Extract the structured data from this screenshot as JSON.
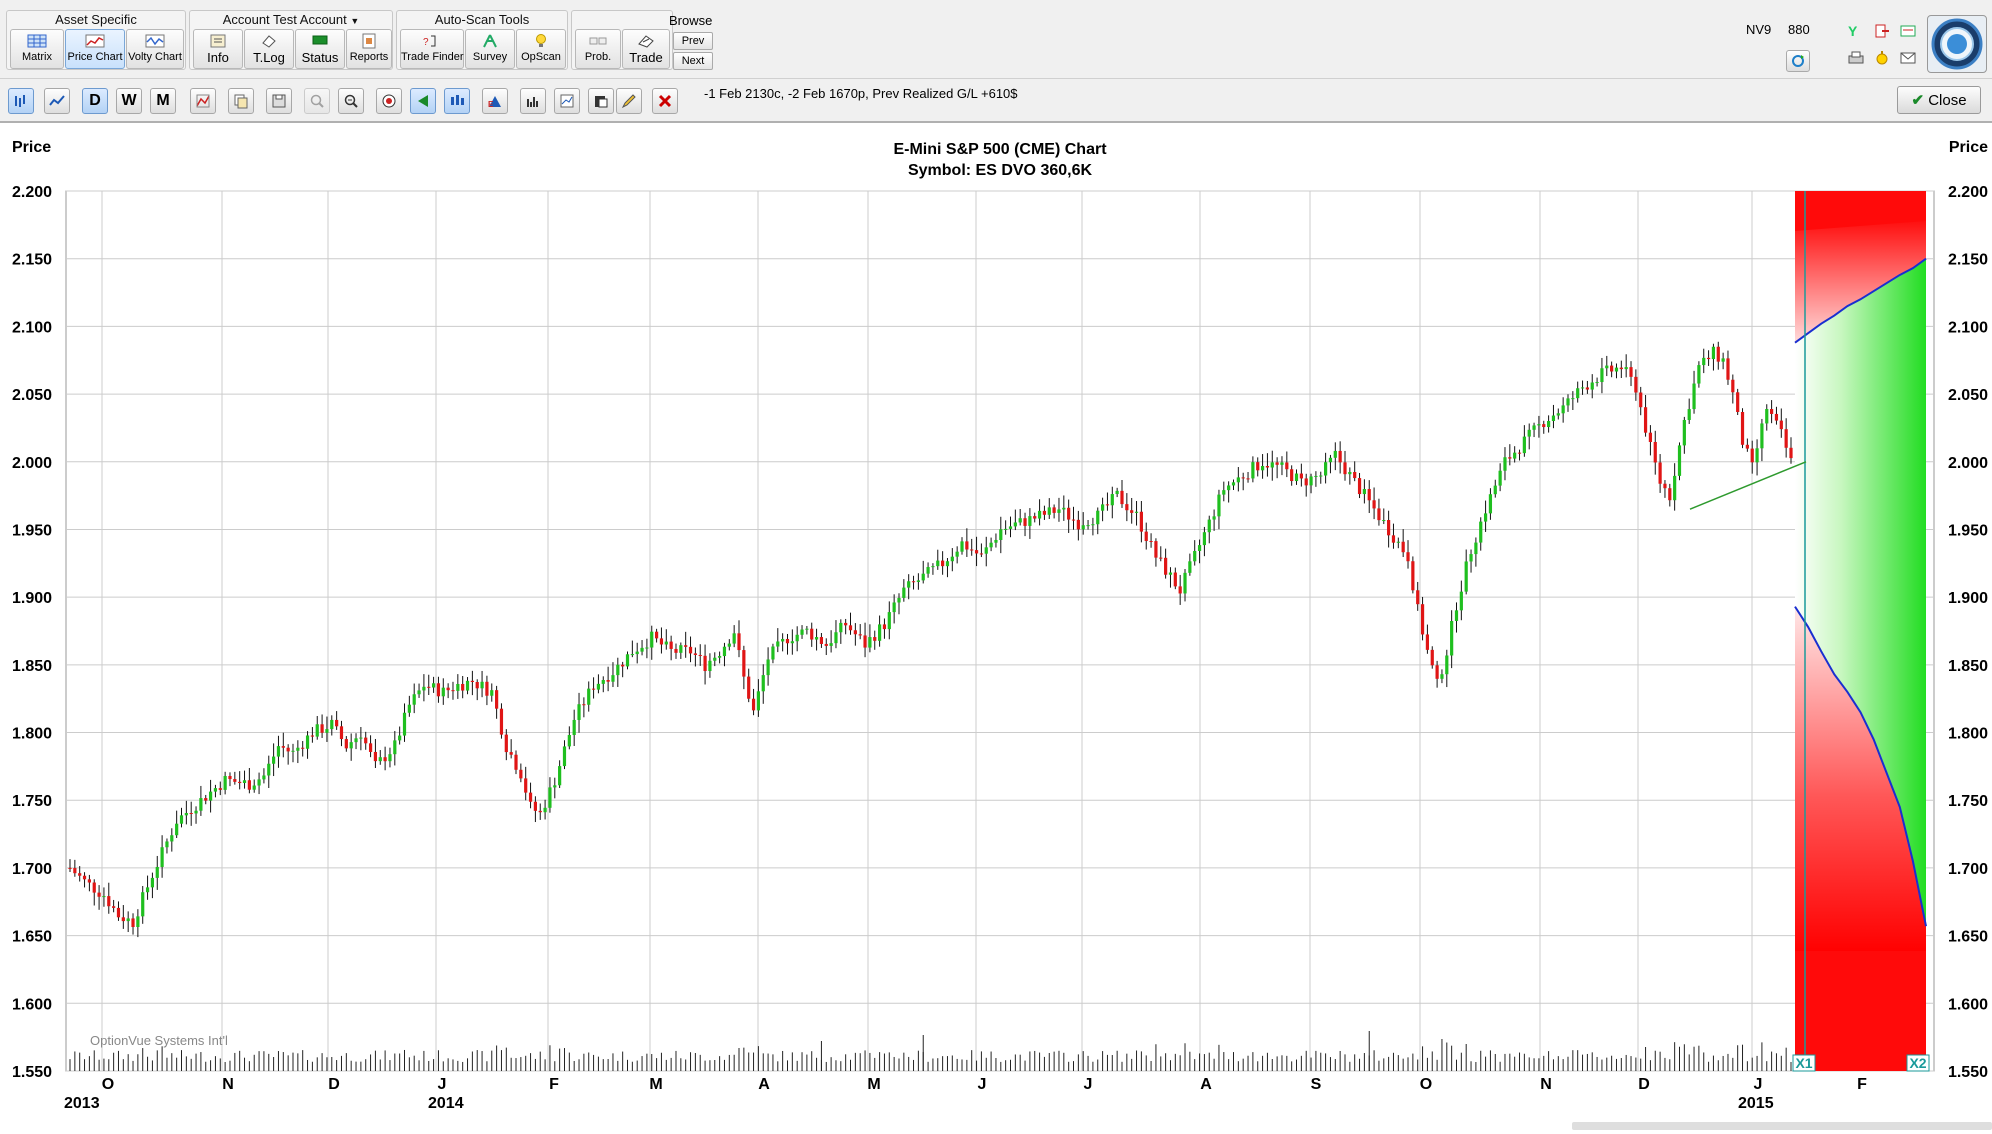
{
  "ribbon": {
    "groups": [
      {
        "title": "Asset Specific",
        "buttons": [
          {
            "label": "Matrix",
            "icon": "matrix-icon"
          },
          {
            "label": "Price Chart",
            "icon": "price-chart-icon",
            "active": true
          },
          {
            "label": "Volty Chart",
            "icon": "volatility-chart-icon"
          }
        ]
      },
      {
        "title": "Account Test Account",
        "buttons": [
          {
            "label": "Info",
            "icon": "info-icon"
          },
          {
            "label": "T.Log",
            "icon": "trade-log-icon"
          },
          {
            "label": "Status",
            "icon": "status-icon"
          },
          {
            "label": "Reports",
            "icon": "reports-icon"
          }
        ]
      },
      {
        "title": "Auto-Scan Tools",
        "buttons": [
          {
            "label": "Trade Finder",
            "icon": "trade-finder-icon"
          },
          {
            "label": "Survey",
            "icon": "survey-icon"
          },
          {
            "label": "OpScan",
            "icon": "lightbulb-icon"
          }
        ]
      },
      {
        "title": "",
        "buttons": [
          {
            "label": "Prob.",
            "icon": "probability-icon"
          },
          {
            "label": "Trade",
            "icon": "trade-icon"
          }
        ]
      }
    ],
    "browse": {
      "title": "Browse",
      "prev": "Prev",
      "next": "Next"
    },
    "status": {
      "left": "NV9",
      "right": "880"
    }
  },
  "toolbar": {
    "period_buttons": [
      "D",
      "W",
      "M"
    ],
    "position_text": "-1 Feb 2130c, -2 Feb 1670p, Prev Realized G/L +610$",
    "close_label": "Close"
  },
  "chart": {
    "title": "E-Mini S&P 500 (CME) Chart",
    "subtitle": "Symbol: ES  DVO 360,6K",
    "y_label_left": "Price",
    "y_label_right": "Price",
    "watermark": "OptionVue Systems Int'l",
    "markers": [
      "X1",
      "X2"
    ],
    "colors": {
      "up": "#1fbf1f",
      "down": "#e01515",
      "trend": "#2e9a2e",
      "band_line": "#1a2fd0",
      "grid": "#cccccc"
    }
  },
  "chart_data": {
    "type": "candlestick",
    "title": "E-Mini S&P 500 (CME) Chart",
    "subtitle": "Symbol: ES  DVO 360,6K",
    "ylabel": "Price",
    "ylim": [
      1550,
      2200
    ],
    "y_ticks": [
      "2.200",
      "2.150",
      "2.100",
      "2.050",
      "2.000",
      "1.950",
      "1.900",
      "1.850",
      "1.800",
      "1.750",
      "1.700",
      "1.650",
      "1.600",
      "1.550"
    ],
    "x_month_labels": [
      "O",
      "N",
      "D",
      "J",
      "F",
      "M",
      "A",
      "M",
      "J",
      "J",
      "A",
      "S",
      "O",
      "N",
      "D",
      "J",
      "F"
    ],
    "x_year_labels": [
      "2013",
      "2014",
      "2015"
    ],
    "close_path_months": [
      "2013-10",
      "2013-11",
      "2013-12",
      "2014-01",
      "2014-02",
      "2014-03",
      "2014-04",
      "2014-05",
      "2014-06",
      "2014-07",
      "2014-08",
      "2014-09",
      "2014-10",
      "2014-11",
      "2014-12",
      "2015-01"
    ],
    "close_path": [
      [
        0,
        1700
      ],
      [
        3,
        1690
      ],
      [
        7,
        1680
      ],
      [
        10,
        1665
      ],
      [
        13,
        1660
      ],
      [
        17,
        1695
      ],
      [
        22,
        1735
      ],
      [
        27,
        1750
      ],
      [
        32,
        1765
      ],
      [
        37,
        1762
      ],
      [
        40,
        1768
      ],
      [
        43,
        1790
      ],
      [
        46,
        1785
      ],
      [
        50,
        1800
      ],
      [
        54,
        1806
      ],
      [
        57,
        1790
      ],
      [
        60,
        1800
      ],
      [
        63,
        1775
      ],
      [
        67,
        1790
      ],
      [
        70,
        1820
      ],
      [
        73,
        1835
      ],
      [
        77,
        1830
      ],
      [
        80,
        1835
      ],
      [
        83,
        1838
      ],
      [
        87,
        1830
      ],
      [
        90,
        1790
      ],
      [
        93,
        1770
      ],
      [
        95,
        1745
      ],
      [
        97,
        1740
      ],
      [
        100,
        1765
      ],
      [
        104,
        1810
      ],
      [
        108,
        1835
      ],
      [
        112,
        1845
      ],
      [
        116,
        1860
      ],
      [
        120,
        1870
      ],
      [
        124,
        1860
      ],
      [
        128,
        1860
      ],
      [
        131,
        1850
      ],
      [
        134,
        1860
      ],
      [
        137,
        1875
      ],
      [
        139,
        1840
      ],
      [
        141,
        1815
      ],
      [
        144,
        1855
      ],
      [
        148,
        1870
      ],
      [
        152,
        1875
      ],
      [
        156,
        1865
      ],
      [
        160,
        1880
      ],
      [
        164,
        1865
      ],
      [
        168,
        1880
      ],
      [
        172,
        1905
      ],
      [
        176,
        1915
      ],
      [
        180,
        1925
      ],
      [
        184,
        1940
      ],
      [
        188,
        1930
      ],
      [
        192,
        1950
      ],
      [
        196,
        1955
      ],
      [
        200,
        1960
      ],
      [
        204,
        1965
      ],
      [
        208,
        1955
      ],
      [
        212,
        1960
      ],
      [
        216,
        1975
      ],
      [
        220,
        1960
      ],
      [
        224,
        1930
      ],
      [
        227,
        1915
      ],
      [
        229,
        1905
      ],
      [
        232,
        1930
      ],
      [
        235,
        1955
      ],
      [
        238,
        1980
      ],
      [
        242,
        1990
      ],
      [
        246,
        2000
      ],
      [
        250,
        1995
      ],
      [
        254,
        1985
      ],
      [
        258,
        1990
      ],
      [
        261,
        2005
      ],
      [
        264,
        1990
      ],
      [
        267,
        1975
      ],
      [
        270,
        1960
      ],
      [
        273,
        1945
      ],
      [
        276,
        1930
      ],
      [
        278,
        1890
      ],
      [
        280,
        1860
      ],
      [
        282,
        1835
      ],
      [
        284,
        1860
      ],
      [
        286,
        1895
      ],
      [
        289,
        1935
      ],
      [
        292,
        1965
      ],
      [
        296,
        2000
      ],
      [
        300,
        2015
      ],
      [
        304,
        2030
      ],
      [
        308,
        2040
      ],
      [
        312,
        2055
      ],
      [
        316,
        2065
      ],
      [
        320,
        2070
      ],
      [
        323,
        2055
      ],
      [
        326,
        2010
      ],
      [
        328,
        1985
      ],
      [
        330,
        1975
      ],
      [
        333,
        2030
      ],
      [
        336,
        2070
      ],
      [
        339,
        2080
      ],
      [
        341,
        2075
      ],
      [
        343,
        2050
      ],
      [
        345,
        2015
      ],
      [
        347,
        1995
      ],
      [
        350,
        2040
      ],
      [
        353,
        2020
      ],
      [
        355,
        2000
      ]
    ],
    "volume_baseline": "low",
    "trendline": {
      "from": [
        "2014-12",
        1965
      ],
      "to": [
        "2015-01",
        2000
      ]
    },
    "projection_band": {
      "start_marker": "X1",
      "end_marker": "X2",
      "upper": [
        [
          0,
          2088
        ],
        [
          10,
          2095
        ],
        [
          20,
          2102
        ],
        [
          30,
          2108
        ],
        [
          40,
          2115
        ],
        [
          50,
          2120
        ],
        [
          60,
          2126
        ],
        [
          70,
          2132
        ],
        [
          80,
          2138
        ],
        [
          90,
          2143
        ],
        [
          100,
          2150
        ]
      ],
      "lower": [
        [
          0,
          1893
        ],
        [
          10,
          1878
        ],
        [
          20,
          1860
        ],
        [
          30,
          1843
        ],
        [
          40,
          1830
        ],
        [
          50,
          1815
        ],
        [
          60,
          1795
        ],
        [
          70,
          1770
        ],
        [
          80,
          1745
        ],
        [
          90,
          1705
        ],
        [
          100,
          1657
        ]
      ]
    }
  }
}
